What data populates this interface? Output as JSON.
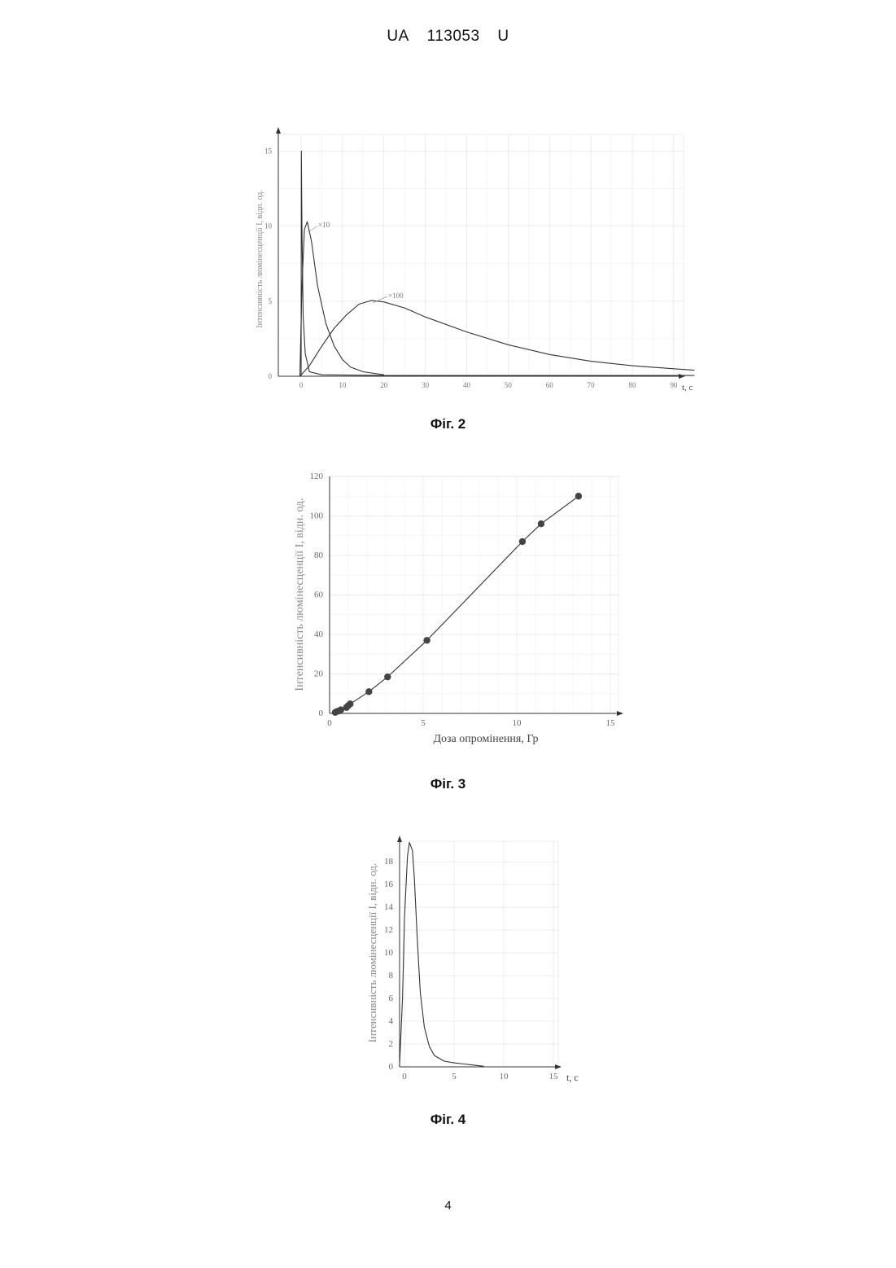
{
  "header": {
    "country": "UA",
    "number": "113053",
    "kind": "U"
  },
  "page_number": "4",
  "chart_data": [
    {
      "type": "line",
      "caption": "Фіг. 2",
      "ylabel": "Інтенсивність люмінесценції I, відн. од.",
      "xlabel": "t, c",
      "xlim": [
        -5,
        95
      ],
      "ylim": [
        0,
        16
      ],
      "xticks": [
        0,
        10,
        20,
        30,
        40,
        50,
        60,
        70,
        80,
        90
      ],
      "yticks": [
        0,
        5,
        10,
        15
      ],
      "grid": true,
      "series": [
        {
          "name": "",
          "x": [
            0,
            0.05,
            0.2,
            0.5,
            1,
            2,
            5,
            20,
            95
          ],
          "y": [
            0,
            15,
            10,
            4,
            1.5,
            0.3,
            0.1,
            0.05,
            0.05
          ]
        },
        {
          "name": "×10",
          "x": [
            -0.3,
            0.2,
            0.8,
            1.5,
            2.5,
            4,
            6,
            8,
            10,
            12,
            15,
            20
          ],
          "y": [
            0,
            6,
            9.8,
            10.3,
            9,
            6,
            3.5,
            2,
            1.1,
            0.6,
            0.3,
            0.1
          ]
        },
        {
          "name": "×100",
          "x": [
            -0.3,
            2,
            5,
            8,
            11,
            14,
            17,
            20,
            25,
            30,
            40,
            50,
            60,
            70,
            80,
            90,
            95
          ],
          "y": [
            0,
            0.7,
            2,
            3.2,
            4.1,
            4.8,
            5.05,
            4.95,
            4.55,
            3.95,
            2.95,
            2.1,
            1.45,
            1.0,
            0.7,
            0.5,
            0.4
          ]
        }
      ],
      "annotations": [
        "×10",
        "×100"
      ]
    },
    {
      "type": "scatter",
      "caption": "Фіг. 3",
      "ylabel": "Інтенсивність люмінесценції I, відн. од.",
      "xlabel": "Доза опромінення, Гр",
      "xlim": [
        0,
        15
      ],
      "ylim": [
        0,
        120
      ],
      "xticks": [
        0,
        5,
        10,
        15
      ],
      "yticks": [
        0,
        20,
        40,
        60,
        80,
        100,
        120
      ],
      "grid": true,
      "series": [
        {
          "name": "",
          "x": [
            0.3,
            0.4,
            0.5,
            0.6,
            0.9,
            1.0,
            1.1,
            2.1,
            3.1,
            5.2,
            10.3,
            11.3,
            13.3
          ],
          "y": [
            0.5,
            1,
            1.2,
            1.8,
            3,
            4,
            4.8,
            11,
            18.5,
            37,
            87,
            96,
            110
          ]
        }
      ]
    },
    {
      "type": "line",
      "caption": "Фіг. 4",
      "ylabel": "Інтенсивність люмінесценції I, відн. од.",
      "xlabel": "t, c",
      "xlim": [
        -1,
        15
      ],
      "ylim": [
        0,
        20
      ],
      "xticks": [
        0,
        5,
        10,
        15
      ],
      "yticks": [
        0,
        2,
        4,
        6,
        8,
        10,
        12,
        14,
        16,
        18
      ],
      "grid": true,
      "series": [
        {
          "name": "",
          "x": [
            -0.5,
            -0.2,
            0,
            0.3,
            0.5,
            0.8,
            1.0,
            1.3,
            1.6,
            2.0,
            2.5,
            3.0,
            4.0,
            5.0,
            6.0,
            7.0,
            8.0
          ],
          "y": [
            0,
            6,
            13,
            18.5,
            19.7,
            19,
            16.5,
            11,
            6.5,
            3.5,
            1.8,
            1.0,
            0.5,
            0.35,
            0.25,
            0.15,
            0.05
          ]
        }
      ]
    }
  ]
}
